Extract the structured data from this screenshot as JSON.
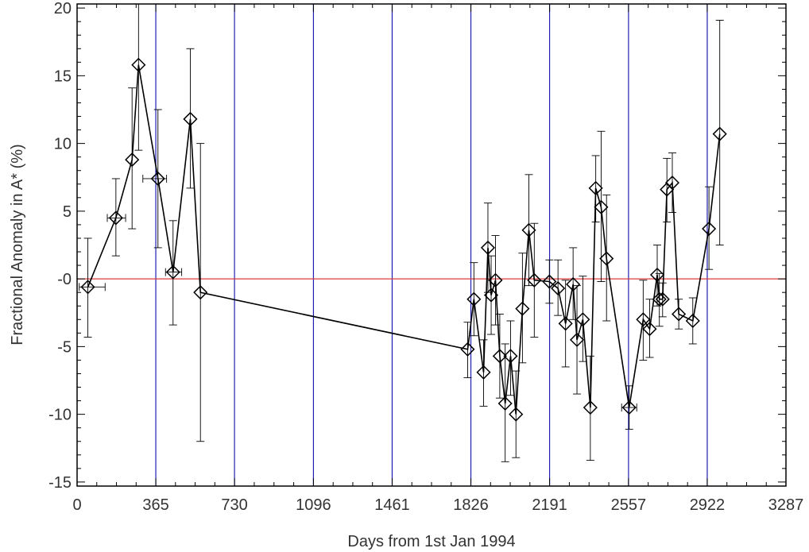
{
  "chart_data": {
    "type": "scatter",
    "xlabel": "Days from 1st Jan 1994",
    "ylabel": "Fractional Anomaly in A* (%)",
    "xlim": [
      0,
      3287
    ],
    "ylim": [
      -15.3,
      20.3
    ],
    "x_ticks": [
      {
        "value": 0,
        "label": "0"
      },
      {
        "value": 365,
        "label": "365"
      },
      {
        "value": 730,
        "label": "730"
      },
      {
        "value": 1096,
        "label": "1096"
      },
      {
        "value": 1461,
        "label": "1461"
      },
      {
        "value": 1826,
        "label": "1826"
      },
      {
        "value": 2191,
        "label": "2191"
      },
      {
        "value": 2557,
        "label": "2557"
      },
      {
        "value": 2922,
        "label": "2922"
      },
      {
        "value": 3287,
        "label": "3287"
      }
    ],
    "y_ticks": [
      {
        "value": 20,
        "label": "20"
      },
      {
        "value": 15,
        "label": "15"
      },
      {
        "value": 10,
        "label": "10"
      },
      {
        "value": 5,
        "label": "5"
      },
      {
        "value": 0,
        "label": "-0"
      },
      {
        "value": -5,
        "label": "-5"
      },
      {
        "value": -10,
        "label": "-10"
      },
      {
        "value": -15,
        "label": "-15"
      }
    ],
    "year_boundaries": [
      365,
      730,
      1096,
      1461,
      1826,
      2191,
      2557,
      2922
    ],
    "reference_line_y": 0,
    "grid": false,
    "colors": {
      "data": "#000000",
      "year_boundaries": "#1f1fb4",
      "reference_line": "#e03a3a",
      "axes": "#000000",
      "text": "#333333"
    },
    "points": [
      {
        "x": 50,
        "y": -0.6,
        "ylo": -4.3,
        "yhi": 3.0,
        "xlo": 10,
        "xhi": 130
      },
      {
        "x": 180,
        "y": 4.5,
        "ylo": 1.7,
        "yhi": 7.4,
        "xlo": 140,
        "xhi": 225
      },
      {
        "x": 255,
        "y": 8.8,
        "ylo": 3.7,
        "yhi": 14.1
      },
      {
        "x": 285,
        "y": 15.8,
        "ylo": 9.5,
        "yhi": 20.3
      },
      {
        "x": 375,
        "y": 7.4,
        "ylo": 2.3,
        "yhi": 12.5,
        "xlo": 305,
        "xhi": 415
      },
      {
        "x": 445,
        "y": 0.5,
        "ylo": -3.4,
        "yhi": 4.3,
        "xlo": 410,
        "xhi": 485
      },
      {
        "x": 525,
        "y": 11.8,
        "ylo": 6.7,
        "yhi": 17.0
      },
      {
        "x": 572,
        "y": -1.0,
        "ylo": -12.0,
        "yhi": 10.0
      },
      {
        "x": 1811,
        "y": -5.2,
        "ylo": -7.3,
        "yhi": -3.2
      },
      {
        "x": 1840,
        "y": -1.5,
        "ylo": -4.2,
        "yhi": 1.2
      },
      {
        "x": 1885,
        "y": -6.9,
        "ylo": -9.4,
        "yhi": -4.5
      },
      {
        "x": 1905,
        "y": 2.3,
        "ylo": -1.0,
        "yhi": 5.6
      },
      {
        "x": 1920,
        "y": -1.2,
        "ylo": -4.1,
        "yhi": 1.7
      },
      {
        "x": 1940,
        "y": -0.1,
        "ylo": -3.4,
        "yhi": 3.2
      },
      {
        "x": 1960,
        "y": -5.7,
        "ylo": -8.8,
        "yhi": -2.6
      },
      {
        "x": 1985,
        "y": -9.2,
        "ylo": -13.5,
        "yhi": -4.8
      },
      {
        "x": 2010,
        "y": -5.7,
        "ylo": -8.6,
        "yhi": -3.1
      },
      {
        "x": 2035,
        "y": -10.0,
        "ylo": -13.2,
        "yhi": -6.8
      },
      {
        "x": 2065,
        "y": -2.2,
        "ylo": -6.2,
        "yhi": 1.9
      },
      {
        "x": 2095,
        "y": 3.6,
        "ylo": -0.5,
        "yhi": 7.7
      },
      {
        "x": 2120,
        "y": -0.1,
        "ylo": -4.3,
        "yhi": 4.1
      },
      {
        "x": 2190,
        "y": -0.2,
        "ylo": -1.8,
        "yhi": 1.4
      },
      {
        "x": 2230,
        "y": -0.7,
        "ylo": -2.7,
        "yhi": 1.4
      },
      {
        "x": 2265,
        "y": -3.3,
        "ylo": -6.5,
        "yhi": -0.1
      },
      {
        "x": 2300,
        "y": -0.4,
        "ylo": -3.0,
        "yhi": 2.3
      },
      {
        "x": 2318,
        "y": -4.5,
        "ylo": -8.5,
        "yhi": -0.5
      },
      {
        "x": 2345,
        "y": -3.0,
        "ylo": -6.1,
        "yhi": 0.2
      },
      {
        "x": 2380,
        "y": -9.5,
        "ylo": -13.4,
        "yhi": -5.7
      },
      {
        "x": 2405,
        "y": 6.7,
        "ylo": 4.2,
        "yhi": 9.1
      },
      {
        "x": 2430,
        "y": 5.3,
        "ylo": -0.2,
        "yhi": 10.9
      },
      {
        "x": 2455,
        "y": 1.5,
        "ylo": -3.1,
        "yhi": 6.2
      },
      {
        "x": 2560,
        "y": -9.5,
        "ylo": -11.1,
        "yhi": -7.9,
        "xlo": 2525,
        "xhi": 2595
      },
      {
        "x": 2625,
        "y": -3.0,
        "ylo": -6.0,
        "yhi": -0.1
      },
      {
        "x": 2655,
        "y": -3.7,
        "ylo": -5.8,
        "yhi": -1.5
      },
      {
        "x": 2690,
        "y": 0.3,
        "ylo": -2.0,
        "yhi": 2.5
      },
      {
        "x": 2700,
        "y": -1.5,
        "ylo": -3.5,
        "yhi": 0.4
      },
      {
        "x": 2715,
        "y": -1.5,
        "ylo": -2.8,
        "yhi": -0.3
      },
      {
        "x": 2735,
        "y": 6.6,
        "ylo": 4.2,
        "yhi": 8.9
      },
      {
        "x": 2760,
        "y": 7.1,
        "ylo": 4.9,
        "yhi": 9.3
      },
      {
        "x": 2790,
        "y": -2.6,
        "ylo": -3.7,
        "yhi": -1.5
      },
      {
        "x": 2855,
        "y": -3.1,
        "ylo": -4.8,
        "yhi": -1.4
      },
      {
        "x": 2930,
        "y": 3.7,
        "ylo": 0.7,
        "yhi": 6.8
      },
      {
        "x": 2980,
        "y": 10.7,
        "ylo": 2.5,
        "yhi": 19.1
      }
    ]
  }
}
